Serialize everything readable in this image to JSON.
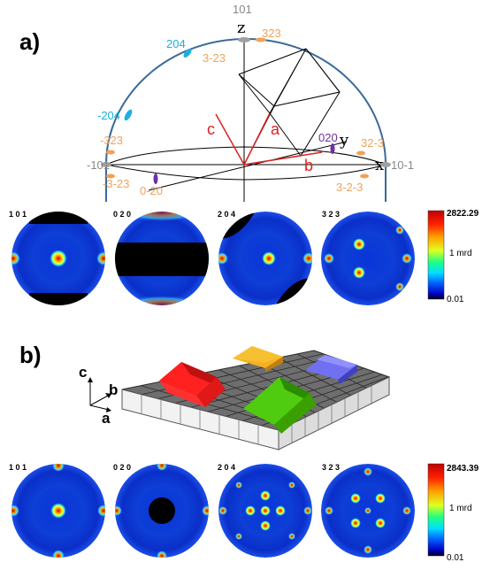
{
  "panel_a": {
    "label": "a)",
    "axes": {
      "z": "z",
      "y": "y",
      "x": "x"
    },
    "crystal_axes": {
      "c": "c",
      "a": "a",
      "b": "b"
    },
    "pole_labels": {
      "top": "101",
      "p323_top": "323",
      "p204": "204",
      "p3m23_top": "3-23",
      "pm204": "-204",
      "pm323": "-323",
      "p020": "020",
      "p32m3": "32-3",
      "pm101": "-101",
      "p10m1": "10-1",
      "p0m20": "0-20",
      "pm3m23": "-3-23",
      "p3m2m3": "3-2-3"
    },
    "pole_titles": [
      "1 0 1",
      "0 2 0",
      "2 0 4",
      "3 2 3"
    ],
    "colorbar": {
      "max": "2822.29",
      "mid": "1 mrd",
      "min": "0.01"
    }
  },
  "panel_b": {
    "label": "b)",
    "axes": {
      "c": "c",
      "b": "b",
      "a": "a"
    },
    "pole_titles": [
      "1 0 1",
      "0 2 0",
      "2 0 4",
      "3 2 3"
    ],
    "colorbar": {
      "max": "2843.39",
      "mid": "1 mrd",
      "min": "0.01"
    }
  },
  "colors": {
    "orange_pole": "#f0a25a",
    "cyan_pole": "#1ab0e0",
    "purple_pole": "#7030a0",
    "red_axis": "#e02020",
    "sphere": "#3a6a9a"
  }
}
